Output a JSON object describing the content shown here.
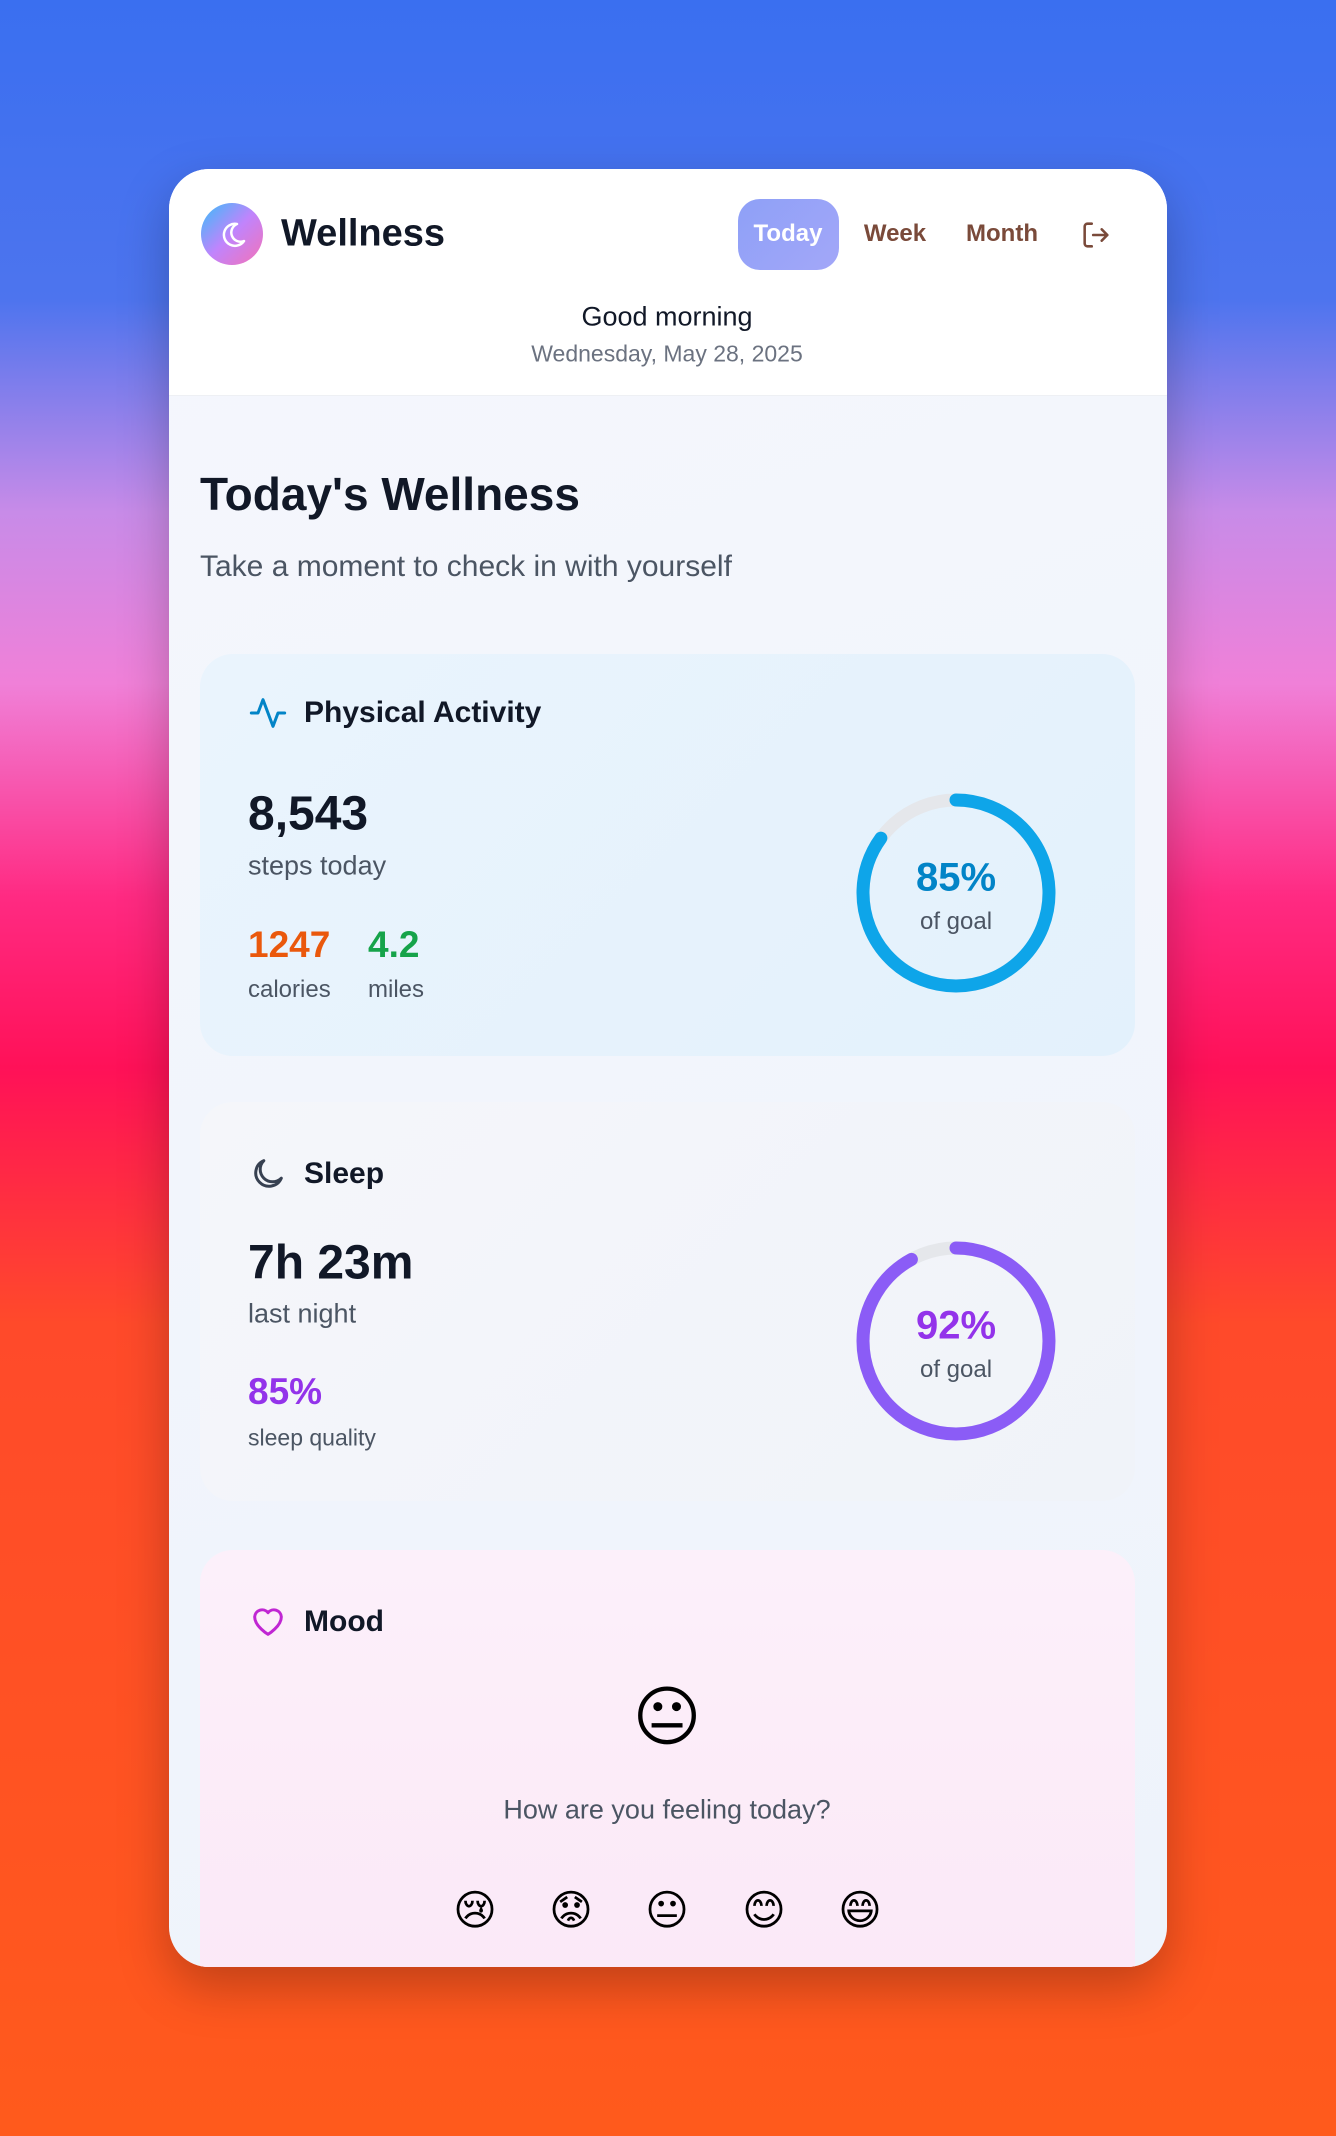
{
  "header": {
    "app_name": "Wellness",
    "nav": [
      "Today",
      "Week",
      "Month"
    ],
    "greeting": "Good morning",
    "date": "Wednesday, May 28, 2025"
  },
  "page": {
    "title": "Today's Wellness",
    "subtitle": "Take a moment to check in with yourself"
  },
  "activity": {
    "title": "Physical Activity",
    "steps": "8,543",
    "steps_label": "steps today",
    "calories": "1247",
    "calories_label": "calories",
    "miles": "4.2",
    "miles_label": "miles",
    "goal": {
      "value": 85,
      "label": "85%"
    },
    "goal_label": "of goal"
  },
  "sleep": {
    "title": "Sleep",
    "duration": "7h 23m",
    "duration_label": "last night",
    "quality": "85%",
    "quality_label": "sleep quality",
    "goal": {
      "value": 92,
      "label": "92%"
    },
    "goal_label": "of goal"
  },
  "mood": {
    "title": "Mood",
    "current": "😐",
    "question": "How are you feeling today?",
    "options": [
      "😢",
      "😟",
      "😐",
      "😊",
      "😄"
    ]
  }
}
